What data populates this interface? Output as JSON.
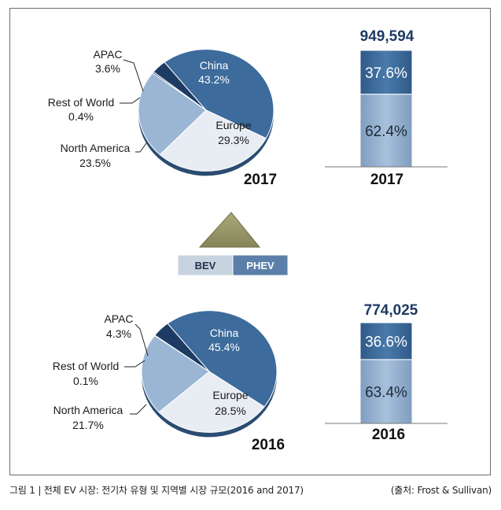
{
  "colors": {
    "china": "#3d6b9c",
    "europe": "#e8edf3",
    "north_america": "#9ab6d4",
    "rest_of_world": "#2c4f78",
    "apac": "#1d3b63",
    "bev_bar": "#9ab3cf",
    "phev_bar": "#3f6d9e",
    "total_text": "#1f3a64",
    "legend_bev": "#c8d3e0",
    "legend_phev": "#5b7fa8",
    "triangle": "#9a9a6e"
  },
  "legend": {
    "bev": "BEV",
    "phev": "PHEV"
  },
  "caption": {
    "left": "그림 1 | 전체 EV 시장: 전기차 유형 및 지역별 시장 규모(2016 and 2017)",
    "right": "(출처: Frost & Sullivan)"
  },
  "chart_data": [
    {
      "type": "pie",
      "year_label": "2017",
      "slices": [
        {
          "label": "China",
          "value": 43.2,
          "pct": "43.2%"
        },
        {
          "label": "Europe",
          "value": 29.3,
          "pct": "29.3%"
        },
        {
          "label": "North America",
          "value": 23.5,
          "pct": "23.5%"
        },
        {
          "label": "Rest of World",
          "value": 0.4,
          "pct": "0.4%"
        },
        {
          "label": "APAC",
          "value": 3.6,
          "pct": "3.6%"
        }
      ]
    },
    {
      "type": "bar",
      "stacked": true,
      "year_label": "2017",
      "total": "949,594",
      "segments": [
        {
          "name": "BEV",
          "value": 62.4,
          "label": "62.4%"
        },
        {
          "name": "PHEV",
          "value": 37.6,
          "label": "37.6%"
        }
      ]
    },
    {
      "type": "pie",
      "year_label": "2016",
      "slices": [
        {
          "label": "China",
          "value": 45.4,
          "pct": "45.4%"
        },
        {
          "label": "Europe",
          "value": 28.5,
          "pct": "28.5%"
        },
        {
          "label": "North America",
          "value": 21.7,
          "pct": "21.7%"
        },
        {
          "label": "Rest of World",
          "value": 0.1,
          "pct": "0.1%"
        },
        {
          "label": "APAC",
          "value": 4.3,
          "pct": "4.3%"
        }
      ]
    },
    {
      "type": "bar",
      "stacked": true,
      "year_label": "2016",
      "total": "774,025",
      "segments": [
        {
          "name": "BEV",
          "value": 63.4,
          "label": "63.4%"
        },
        {
          "name": "PHEV",
          "value": 36.6,
          "label": "36.6%"
        }
      ]
    }
  ]
}
